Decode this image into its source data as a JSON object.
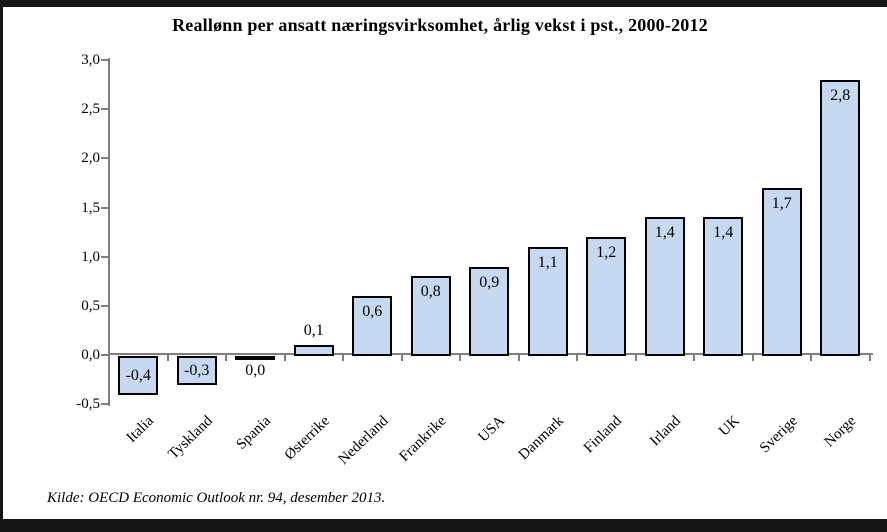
{
  "page": {
    "title": "Reallønn per ansatt næringsvirksomhet, årlig vekst i pst., 2000-2012",
    "source": "Kilde: OECD Economic Outlook nr. 94, desember 2013."
  },
  "colors": {
    "bar_fill": "#c6d9f1",
    "bar_border": "#000000",
    "axis": "#7f7f7f",
    "frame": "#161616",
    "text": "#000000"
  },
  "chart_data": {
    "type": "bar",
    "title": "Reallønn per ansatt næringsvirksomhet, årlig vekst i pst., 2000-2012",
    "categories": [
      "Italia",
      "Tyskland",
      "Spania",
      "Østerrike",
      "Nederland",
      "Frankrike",
      "USA",
      "Danmark",
      "Finland",
      "Irland",
      "UK",
      "Sverige",
      "Norge"
    ],
    "values": [
      -0.4,
      -0.3,
      0.0,
      0.1,
      0.6,
      0.8,
      0.9,
      1.1,
      1.2,
      1.4,
      1.4,
      1.7,
      2.8
    ],
    "value_labels": [
      "-0,4",
      "-0,3",
      "0,0",
      "0,1",
      "0,6",
      "0,8",
      "0,9",
      "1,1",
      "1,2",
      "1,4",
      "1,4",
      "1,7",
      "2,8"
    ],
    "xlabel": "",
    "ylabel": "",
    "ylim": [
      -0.5,
      3.0
    ],
    "ytick_values": [
      3.0,
      2.5,
      2.0,
      1.5,
      1.0,
      0.5,
      0.0,
      -0.5
    ],
    "ytick_labels": [
      "3,0",
      "2,5",
      "2,0",
      "1,5",
      "1,0",
      "0,5",
      "0,0",
      "-0,5"
    ],
    "grid": false,
    "legend": "none",
    "source": "Kilde: OECD Economic Outlook nr. 94, desember 2013."
  }
}
